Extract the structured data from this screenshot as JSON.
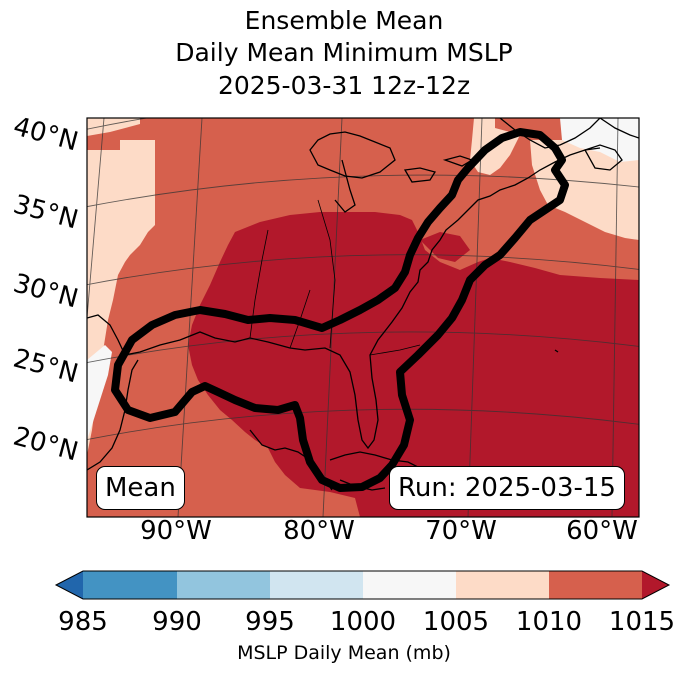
{
  "title": {
    "line1": "Ensemble Mean",
    "line2": "Daily Mean Minimum MSLP",
    "line3": "2025-03-31 12z-12z"
  },
  "map": {
    "lat_labels": [
      "40°N",
      "35°N",
      "30°N",
      "25°N",
      "20°N"
    ],
    "lon_labels": [
      "90°W",
      "80°W",
      "70°W",
      "60°W"
    ],
    "mean_tag": "Mean",
    "run_tag": "Run: 2025-03-15"
  },
  "colorbar": {
    "ticks": [
      "985",
      "990",
      "995",
      "1000",
      "1005",
      "1010",
      "1015"
    ],
    "label": "MSLP Daily Mean (mb)",
    "colors": {
      "below": "#2166ac",
      "985-990": "#4393c3",
      "990-995": "#92c5de",
      "995-1000": "#d1e5f0",
      "1000-1005": "#f7f7f7",
      "1005-1010": "#fddbc7",
      "1010-1015": "#d6604d",
      "above": "#b2182b"
    }
  }
}
